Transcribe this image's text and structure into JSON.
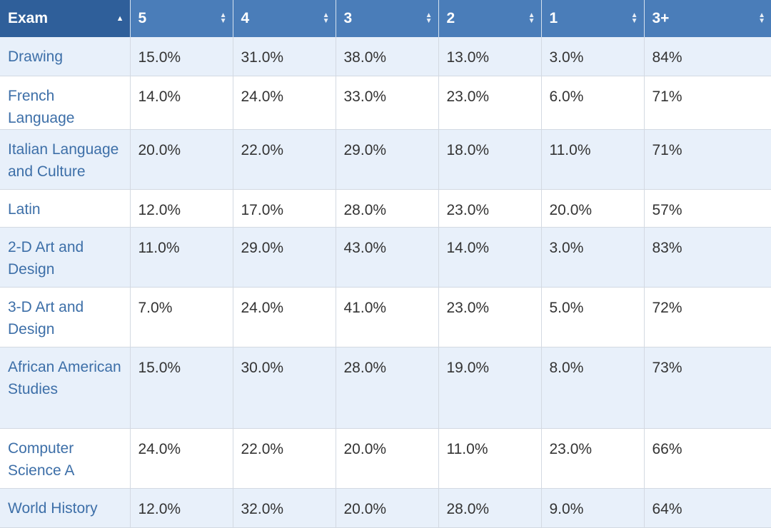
{
  "table": {
    "headers": [
      "Exam",
      "5",
      "4",
      "3",
      "2",
      "1",
      "3+"
    ],
    "sorted_column": "Exam",
    "rows": [
      {
        "exam": "Drawing",
        "values": [
          "15.0%",
          "31.0%",
          "38.0%",
          "13.0%",
          "3.0%",
          "84%"
        ]
      },
      {
        "exam": "French Language",
        "values": [
          "14.0%",
          "24.0%",
          "33.0%",
          "23.0%",
          "6.0%",
          "71%"
        ]
      },
      {
        "exam": "Italian Language and Culture",
        "values": [
          "20.0%",
          "22.0%",
          "29.0%",
          "18.0%",
          "11.0%",
          "71%"
        ]
      },
      {
        "exam": "Latin",
        "values": [
          "12.0%",
          "17.0%",
          "28.0%",
          "23.0%",
          "20.0%",
          "57%"
        ]
      },
      {
        "exam": "2-D Art and Design",
        "values": [
          "11.0%",
          "29.0%",
          "43.0%",
          "14.0%",
          "3.0%",
          "83%"
        ]
      },
      {
        "exam": "3-D Art and Design",
        "values": [
          "7.0%",
          "24.0%",
          "41.0%",
          "23.0%",
          "5.0%",
          "72%"
        ]
      },
      {
        "exam": "African American Studies",
        "values": [
          "15.0%",
          "30.0%",
          "28.0%",
          "19.0%",
          "8.0%",
          "73%"
        ]
      },
      {
        "exam": "Computer Science A",
        "values": [
          "24.0%",
          "22.0%",
          "20.0%",
          "11.0%",
          "23.0%",
          "66%"
        ]
      },
      {
        "exam": "World History",
        "values": [
          "12.0%",
          "32.0%",
          "20.0%",
          "28.0%",
          "9.0%",
          "64%"
        ]
      }
    ]
  },
  "colors": {
    "header_bg": "#4a7db9",
    "header_sorted_bg": "#2f5f9a",
    "row_alt_bg": "#e8f0fa",
    "exam_link": "#3d6fa8"
  },
  "icons": {
    "sort": "sort-icon",
    "sort_asc": "sort-asc-icon"
  }
}
